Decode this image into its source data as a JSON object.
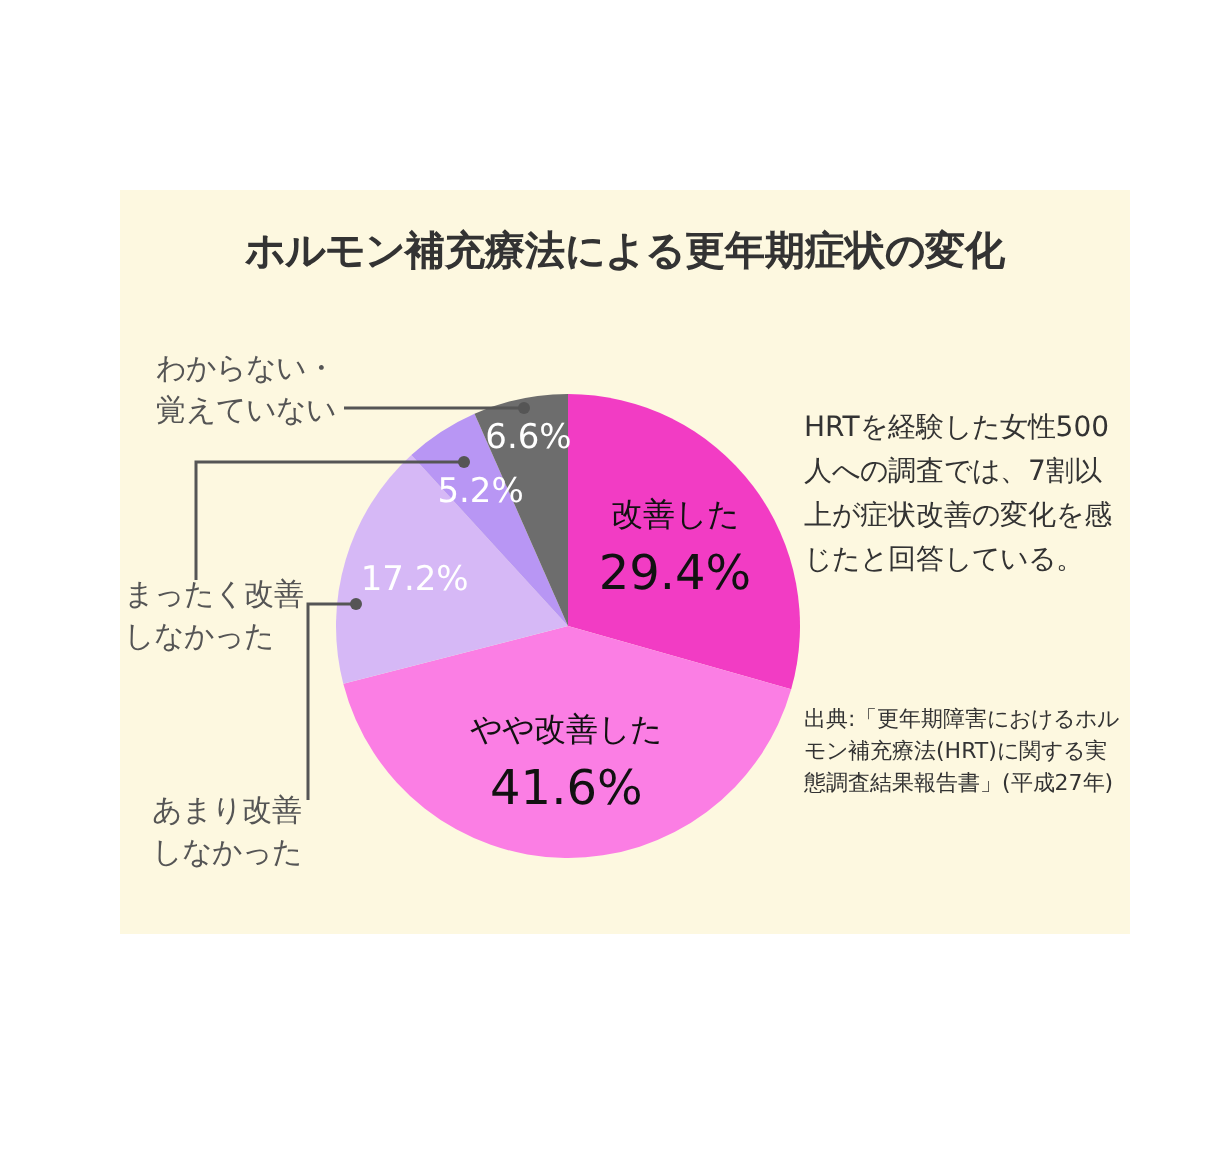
{
  "chart_data": {
    "type": "pie",
    "title": "ホルモン補充療法による更年期症状の変化",
    "categories": [
      "改善した",
      "やや改善した",
      "あまり改善しなかった",
      "まったく改善しなかった",
      "わからない・覚えていない"
    ],
    "values": [
      29.4,
      41.6,
      17.2,
      5.2,
      6.6
    ],
    "value_labels": [
      "29.4%",
      "41.6%",
      "17.2%",
      "5.2%",
      "6.6%"
    ],
    "colors": [
      "#f23cc4",
      "#fb7ee4",
      "#d6b8f6",
      "#b896f4",
      "#6d6d6d"
    ],
    "annotations": [
      "HRTを経験した女性500人への調査では、7割以上が症状改善の変化を感じたと回答している。",
      "出典:「更年期障害におけるホルモン補充療法(HRT)に関する実態調査結果報告書」(平成27年)"
    ]
  }
}
